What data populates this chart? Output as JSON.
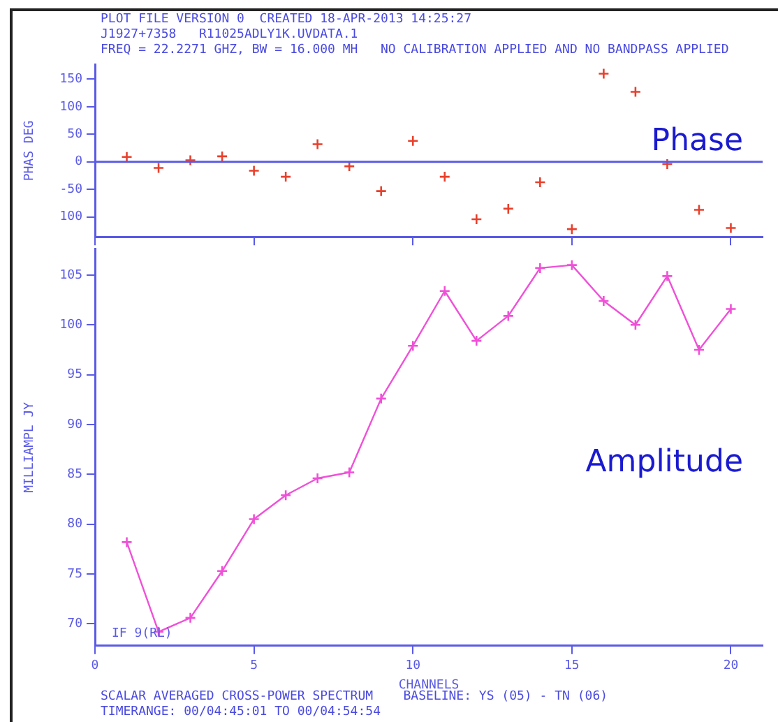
{
  "chart_data": [
    {
      "type": "scatter",
      "title": "PLOT FILE VERSION 0  CREATED 18-APR-2013 14:25:27",
      "subtitle": "J1927+7358   R11025ADLY1K.UVDATA.1",
      "ylabel": "PHAS DEG",
      "annotations": [
        "FREQ = 22.2271 GHZ, BW = 16.000 MH   NO CALIBRATION APPLIED AND NO BANDPASS APPLIED",
        "Phase"
      ],
      "x": [
        1,
        2,
        3,
        4,
        5,
        6,
        7,
        8,
        9,
        10,
        11,
        12,
        13,
        14,
        15,
        16,
        17,
        18,
        19,
        20
      ],
      "series": [
        {
          "color": "#e8402c",
          "values": [
            9,
            -11,
            3,
            10,
            -16,
            -27,
            32,
            -8,
            -53,
            38,
            -27,
            -104,
            -85,
            -37,
            -122,
            160,
            127,
            -4,
            -87,
            -120
          ]
        }
      ],
      "xlim": [
        0,
        21
      ],
      "xticks": [
        0,
        5,
        10,
        15,
        20
      ],
      "ylim": [
        -136,
        176
      ],
      "yticks": [
        {
          "value": -100,
          "label": "100"
        },
        -50,
        0,
        50,
        100,
        150
      ],
      "ref_lines": [
        {
          "axis": "y",
          "value": 0,
          "color": "#5a5ae6"
        }
      ],
      "tick_labels": "y",
      "marker": "cross",
      "grid": false,
      "legend": false
    },
    {
      "type": "line",
      "xlabel": "CHANNELS",
      "ylabel": "MILLIAMPL JY",
      "annotations": [
        "Amplitude",
        "IF 9(RL)",
        "SCALAR AVERAGED CROSS-POWER SPECTRUM    BASELINE: YS (05) - TN (06)",
        "TIMERANGE: 00/04:45:01 TO 00/04:54:54"
      ],
      "x": [
        1,
        2,
        3,
        4,
        5,
        6,
        7,
        8,
        9,
        10,
        11,
        12,
        13,
        14,
        15,
        16,
        17,
        18,
        19,
        20
      ],
      "series": [
        {
          "color": "#f050d8",
          "values": [
            78.2,
            69.2,
            70.6,
            75.3,
            80.5,
            82.9,
            84.6,
            85.2,
            92.6,
            97.9,
            103.4,
            98.4,
            100.9,
            105.7,
            106.0,
            102.4,
            100.0,
            104.9,
            97.5,
            101.6
          ]
        }
      ],
      "xlim": [
        0,
        21
      ],
      "xticks": [
        0,
        5,
        10,
        15,
        20
      ],
      "ylim": [
        67.8,
        107.6
      ],
      "yticks": [
        70,
        75,
        80,
        85,
        90,
        95,
        100,
        105
      ],
      "marker": "cross",
      "line_style": "solid",
      "grid": false,
      "legend": false
    }
  ]
}
